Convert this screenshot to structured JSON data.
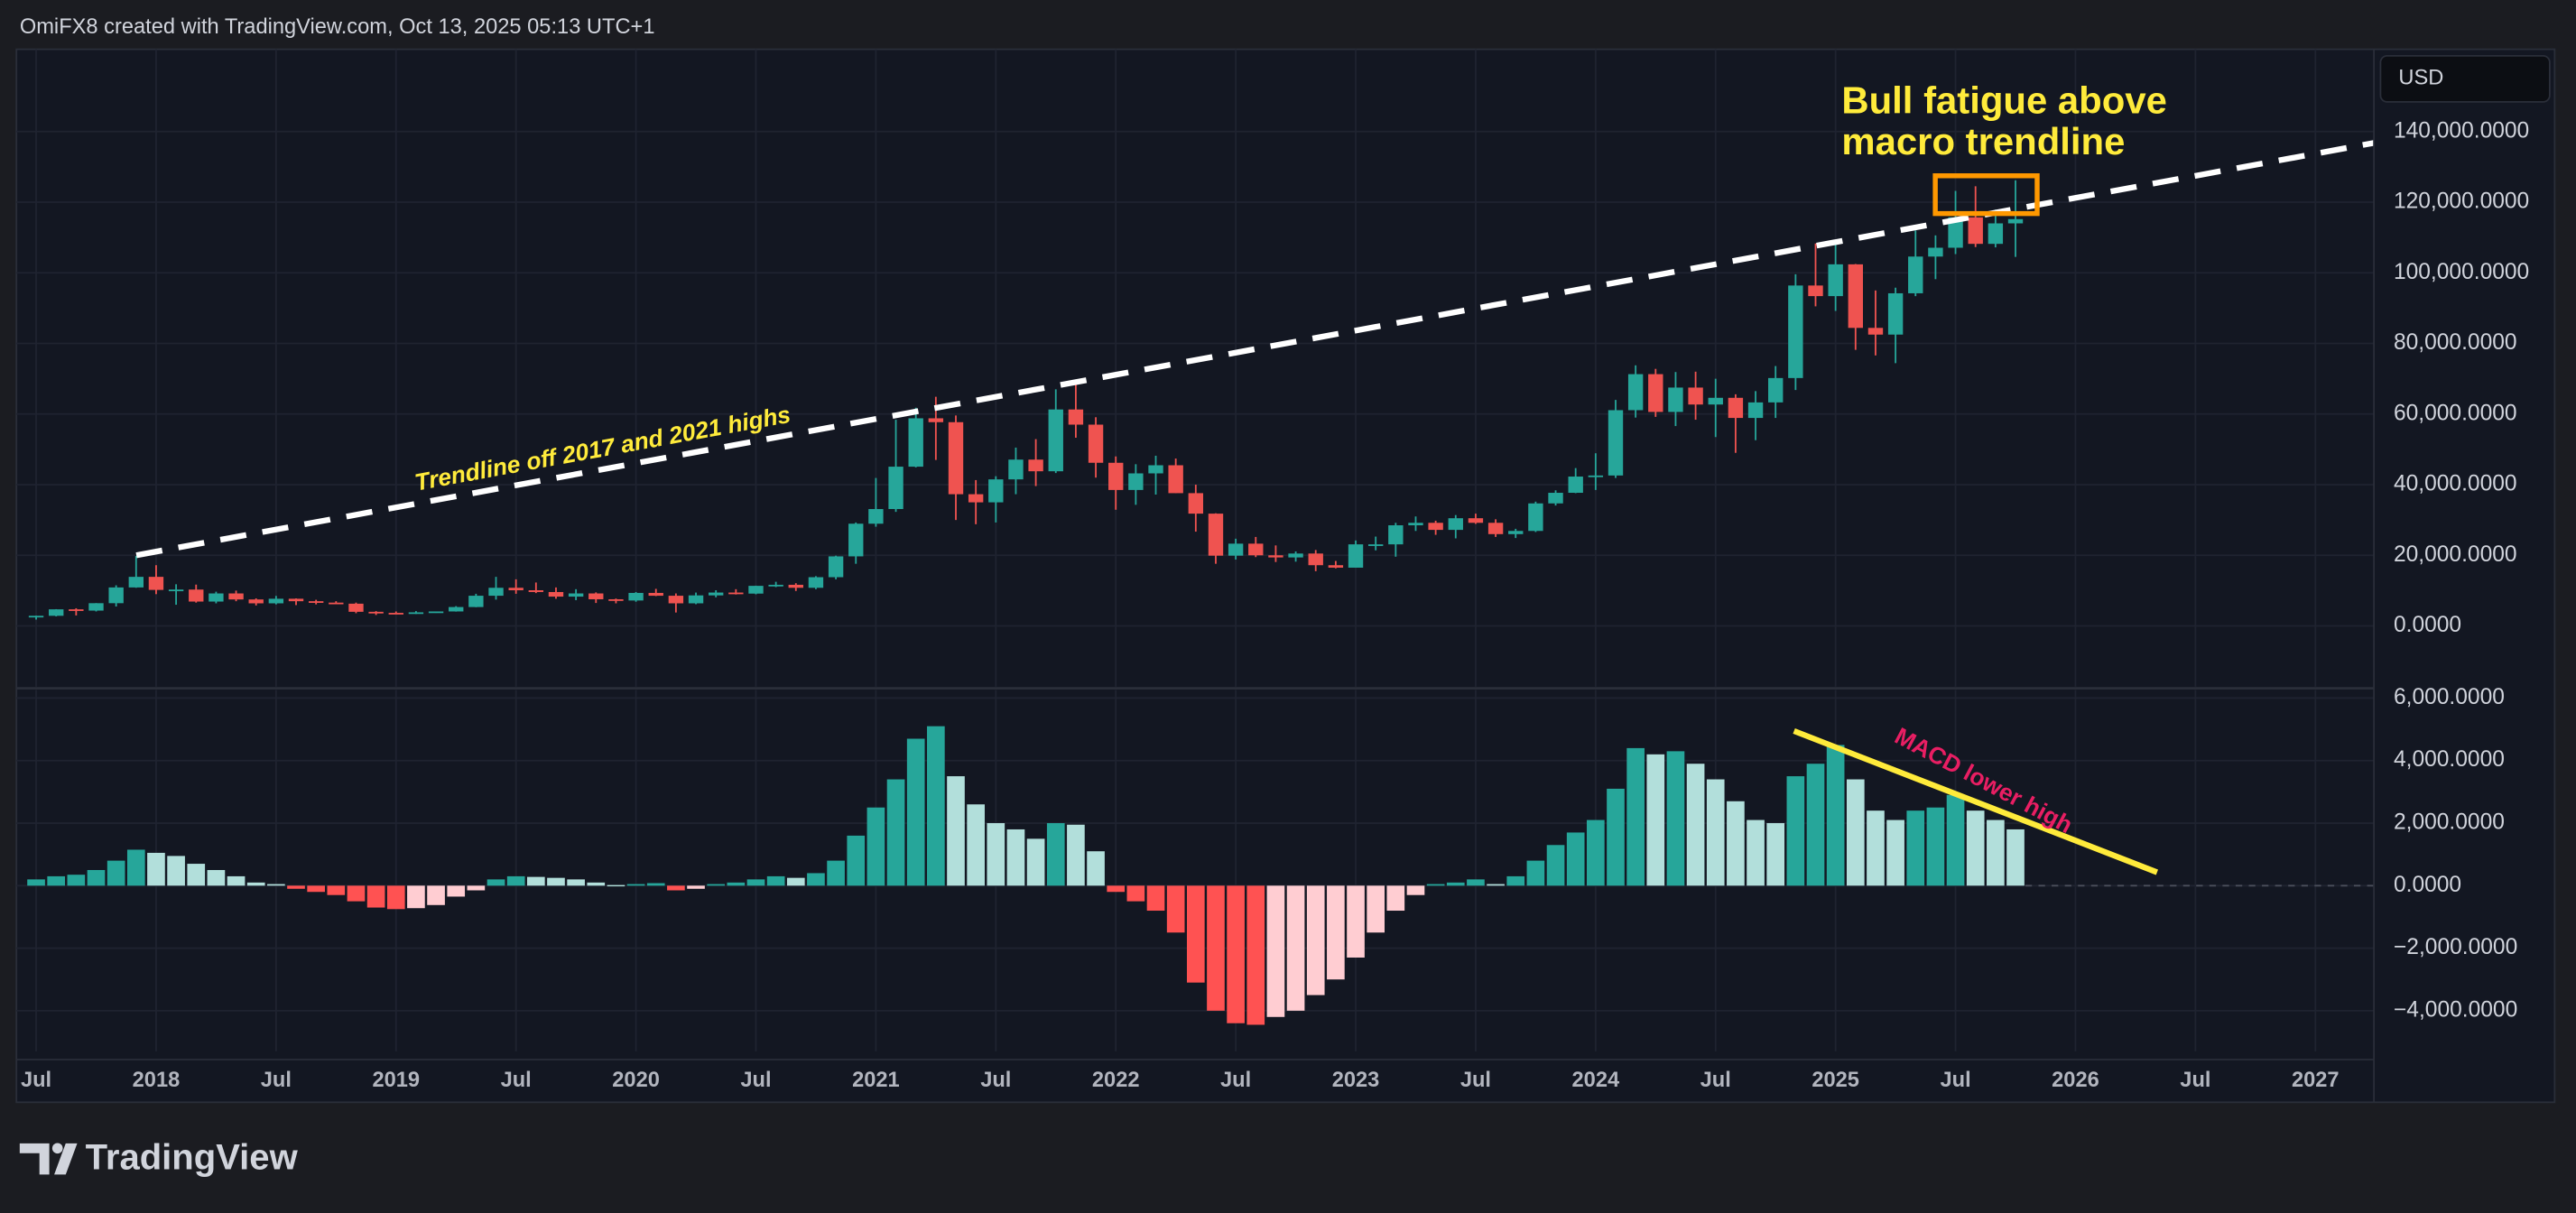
{
  "header": "OmiFX8 created with TradingView.com, Oct 13, 2025 05:13 UTC+1",
  "currency": "USD",
  "brand": "TradingView",
  "chart_data": [
    {
      "type": "candlestick",
      "up_color": "#26a69a",
      "down_color": "#ef5350",
      "annotations": [
        "Bull fatigue above",
        "macro trendline",
        "Trendline off 2017 and 2021 highs"
      ],
      "x": [
        "2017-07",
        "2017-08",
        "2017-09",
        "2017-10",
        "2017-11",
        "2017-12",
        "2018-01",
        "2018-02",
        "2018-03",
        "2018-04",
        "2018-05",
        "2018-06",
        "2018-07",
        "2018-08",
        "2018-09",
        "2018-10",
        "2018-11",
        "2018-12",
        "2019-01",
        "2019-02",
        "2019-03",
        "2019-04",
        "2019-05",
        "2019-06",
        "2019-07",
        "2019-08",
        "2019-09",
        "2019-10",
        "2019-11",
        "2019-12",
        "2020-01",
        "2020-02",
        "2020-03",
        "2020-04",
        "2020-05",
        "2020-06",
        "2020-07",
        "2020-08",
        "2020-09",
        "2020-10",
        "2020-11",
        "2020-12",
        "2021-01",
        "2021-02",
        "2021-03",
        "2021-04",
        "2021-05",
        "2021-06",
        "2021-07",
        "2021-08",
        "2021-09",
        "2021-10",
        "2021-11",
        "2021-12",
        "2022-01",
        "2022-02",
        "2022-03",
        "2022-04",
        "2022-05",
        "2022-06",
        "2022-07",
        "2022-08",
        "2022-09",
        "2022-10",
        "2022-11",
        "2022-12",
        "2023-01",
        "2023-02",
        "2023-03",
        "2023-04",
        "2023-05",
        "2023-06",
        "2023-07",
        "2023-08",
        "2023-09",
        "2023-10",
        "2023-11",
        "2023-12",
        "2024-01",
        "2024-02",
        "2024-03",
        "2024-04",
        "2024-05",
        "2024-06",
        "2024-07",
        "2024-08",
        "2024-09",
        "2024-10",
        "2024-11",
        "2024-12",
        "2025-01",
        "2025-02",
        "2025-03",
        "2025-04",
        "2025-05",
        "2025-06",
        "2025-07",
        "2025-08",
        "2025-09",
        "2025-10"
      ],
      "open": [
        2480,
        2870,
        4700,
        4340,
        6440,
        10900,
        13900,
        10200,
        10300,
        6900,
        9200,
        7500,
        6400,
        7700,
        7000,
        6600,
        6300,
        4000,
        3700,
        3450,
        3850,
        4100,
        5350,
        8550,
        10800,
        10100,
        9600,
        8300,
        9200,
        7550,
        7200,
        9350,
        8550,
        6400,
        8650,
        9450,
        9150,
        11350,
        11650,
        10800,
        13800,
        19700,
        28950,
        33100,
        45100,
        58800,
        57700,
        37300,
        35000,
        41500,
        47100,
        43800,
        61300,
        57000,
        46200,
        38500,
        43200,
        45500,
        37600,
        31800,
        19900,
        23300,
        20000,
        19400,
        20500,
        17200,
        16500,
        23100,
        23100,
        28500,
        29200,
        27200,
        30500,
        29200,
        26000,
        26900,
        34700,
        37700,
        42300,
        42600,
        61100,
        71300,
        60600,
        67500,
        62700,
        64600,
        58900,
        63300,
        70200,
        96400,
        93400,
        102400,
        84400,
        82500,
        94200,
        104600,
        107100,
        115700,
        108200,
        114000
      ],
      "high": [
        2900,
        4750,
        5000,
        6470,
        11500,
        19800,
        17200,
        11800,
        11700,
        9700,
        10000,
        7800,
        8500,
        7800,
        7400,
        7000,
        6600,
        4200,
        4100,
        4200,
        4100,
        5600,
        9100,
        13900,
        13200,
        12300,
        10900,
        10400,
        9500,
        7750,
        9600,
        10500,
        9200,
        9450,
        10100,
        10400,
        11400,
        12500,
        12100,
        14100,
        19900,
        29300,
        41900,
        58400,
        61800,
        64900,
        59600,
        41300,
        42400,
        50500,
        52900,
        67000,
        69000,
        59100,
        48000,
        45800,
        48200,
        47400,
        40000,
        31900,
        24700,
        25200,
        22800,
        21100,
        21500,
        18400,
        24200,
        25300,
        29200,
        31000,
        29800,
        31400,
        31800,
        30200,
        27500,
        35200,
        38400,
        44700,
        48900,
        64000,
        73800,
        72800,
        71900,
        72000,
        70000,
        65600,
        66500,
        73600,
        99600,
        108300,
        109400,
        102500,
        95000,
        95800,
        112000,
        110600,
        123200,
        124500,
        117900,
        126200
      ],
      "low": [
        1800,
        2700,
        2970,
        4100,
        5500,
        10800,
        9000,
        6000,
        6600,
        6400,
        7000,
        5800,
        6100,
        5900,
        6100,
        6200,
        3600,
        3100,
        3400,
        3400,
        3700,
        4050,
        5300,
        7450,
        9100,
        9300,
        7700,
        7300,
        6500,
        6400,
        6850,
        8450,
        3800,
        6150,
        8100,
        8900,
        8950,
        11000,
        9900,
        10400,
        13200,
        17600,
        28100,
        32300,
        44900,
        47000,
        30000,
        28800,
        29300,
        37300,
        39600,
        43300,
        53300,
        42000,
        32900,
        34300,
        37200,
        37600,
        26700,
        17600,
        18800,
        19500,
        18100,
        18200,
        15500,
        16300,
        16500,
        21400,
        19600,
        26900,
        25800,
        24800,
        28900,
        25200,
        24900,
        26600,
        34100,
        37600,
        38500,
        41900,
        59000,
        59200,
        56600,
        58400,
        53500,
        49000,
        52600,
        58900,
        66800,
        90500,
        89200,
        78200,
        76600,
        74400,
        93400,
        98200,
        105300,
        107300,
        107200,
        104500
      ],
      "close": [
        2870,
        4700,
        4340,
        6440,
        10900,
        13900,
        10200,
        10300,
        6900,
        9200,
        7500,
        6400,
        7700,
        7000,
        6600,
        6300,
        4000,
        3700,
        3450,
        3850,
        4100,
        5350,
        8550,
        10800,
        10100,
        9600,
        8300,
        9200,
        7550,
        7200,
        9350,
        8550,
        6400,
        8650,
        9450,
        9150,
        11350,
        11650,
        10800,
        13800,
        19700,
        28950,
        33100,
        45100,
        58800,
        57700,
        37300,
        35000,
        41500,
        47100,
        43800,
        61300,
        57000,
        46200,
        38500,
        43200,
        45500,
        37600,
        31800,
        19900,
        23300,
        20000,
        19400,
        20500,
        17200,
        16500,
        23100,
        23100,
        28500,
        29200,
        27200,
        30500,
        29200,
        26000,
        26900,
        34700,
        37700,
        42300,
        42600,
        61100,
        71300,
        60600,
        67500,
        62700,
        64600,
        58900,
        63300,
        70200,
        96400,
        93400,
        102400,
        84400,
        82500,
        94200,
        104600,
        107100,
        115700,
        108200,
        114000,
        115200
      ],
      "ylim": [
        -17200,
        163300
      ],
      "yticks": [
        {
          "value": 0,
          "label": "0.0000"
        },
        {
          "value": 20000,
          "label": "20,000.0000"
        },
        {
          "value": 40000,
          "label": "40,000.0000"
        },
        {
          "value": 60000,
          "label": "60,000.0000"
        },
        {
          "value": 80000,
          "label": "80,000.0000"
        },
        {
          "value": 100000,
          "label": "100,000.0000"
        },
        {
          "value": 120000,
          "label": "120,000.0000"
        },
        {
          "value": 140000,
          "label": "140,000.0000"
        }
      ],
      "xticks": [
        {
          "value": "2017-07",
          "label": "Jul"
        },
        {
          "value": "2018-01",
          "label": "2018"
        },
        {
          "value": "2018-07",
          "label": "Jul"
        },
        {
          "value": "2019-01",
          "label": "2019"
        },
        {
          "value": "2019-07",
          "label": "Jul"
        },
        {
          "value": "2020-01",
          "label": "2020"
        },
        {
          "value": "2020-07",
          "label": "Jul"
        },
        {
          "value": "2021-01",
          "label": "2021"
        },
        {
          "value": "2021-07",
          "label": "Jul"
        },
        {
          "value": "2022-01",
          "label": "2022"
        },
        {
          "value": "2022-07",
          "label": "Jul"
        },
        {
          "value": "2023-01",
          "label": "2023"
        },
        {
          "value": "2023-07",
          "label": "Jul"
        },
        {
          "value": "2024-01",
          "label": "2024"
        },
        {
          "value": "2024-07",
          "label": "Jul"
        },
        {
          "value": "2025-01",
          "label": "2025"
        },
        {
          "value": "2025-07",
          "label": "Jul"
        },
        {
          "value": "2026-01",
          "label": "2026"
        },
        {
          "value": "2026-07",
          "label": "Jul"
        },
        {
          "value": "2027-01",
          "label": "2027"
        }
      ],
      "grid": true
    },
    {
      "type": "histogram",
      "colors": {
        "grow_above": "#26a69a",
        "fall_above": "#b2dfdb",
        "grow_below": "#ffcdd2",
        "fall_below": "#ff5252"
      },
      "annotations": [
        "MACD lower high"
      ],
      "values": [
        200,
        300,
        350,
        500,
        800,
        1150,
        1050,
        950,
        700,
        500,
        300,
        100,
        50,
        -100,
        -200,
        -300,
        -500,
        -700,
        -750,
        -720,
        -620,
        -350,
        -150,
        200,
        300,
        280,
        250,
        200,
        100,
        20,
        50,
        80,
        -150,
        -100,
        50,
        100,
        200,
        300,
        250,
        400,
        800,
        1600,
        2500,
        3400,
        4700,
        5100,
        3500,
        2600,
        2000,
        1800,
        1500,
        2000,
        1950,
        1100,
        -200,
        -500,
        -800,
        -1500,
        -3100,
        -4000,
        -4400,
        -4450,
        -4200,
        -4000,
        -3500,
        -3000,
        -2300,
        -1500,
        -800,
        -300,
        50,
        100,
        200,
        50,
        300,
        800,
        1300,
        1700,
        2100,
        3100,
        4400,
        4200,
        4300,
        3900,
        3400,
        2700,
        2100,
        2000,
        3500,
        3900,
        4500,
        3400,
        2400,
        2100,
        2400,
        2500,
        2900,
        2400,
        2100,
        1800
      ],
      "ylim": [
        -5300,
        6260
      ],
      "yticks": [
        {
          "value": -4000,
          "label": "−4,000.0000"
        },
        {
          "value": -2000,
          "label": "−2,000.0000"
        },
        {
          "value": 0,
          "label": "0.0000"
        },
        {
          "value": 2000,
          "label": "2,000.0000"
        },
        {
          "value": 4000,
          "label": "4,000.0000"
        },
        {
          "value": 6000,
          "label": "6,000.0000"
        }
      ],
      "grid": true
    }
  ]
}
